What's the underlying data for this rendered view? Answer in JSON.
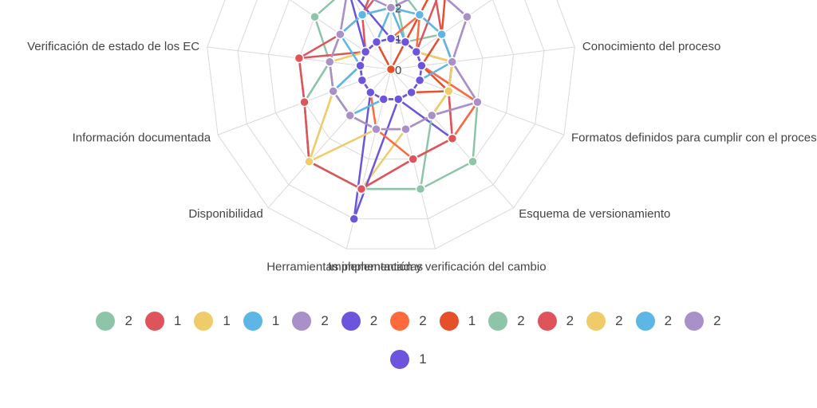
{
  "chart_data": {
    "type": "radar",
    "title": "",
    "rmax": 6,
    "ticks": [
      0,
      1,
      2
    ],
    "grid_rings": 6,
    "axes": [
      "",
      "",
      "",
      "Conocimiento del proceso",
      "Formatos definidos para cumplir con el proceso",
      "Esquema de versionamiento",
      "Implementación y verificación del cambio",
      "Herramientas implementadas",
      "Disponibilidad",
      "Información documentada",
      "Verificación de estado de los EC",
      "",
      ""
    ],
    "series": [
      {
        "name": "2",
        "color": "#8ec5a8",
        "values": [
          3,
          1,
          2,
          2,
          3,
          4,
          4,
          4,
          4,
          3,
          2,
          3,
          3
        ]
      },
      {
        "name": "1",
        "color": "#de545a",
        "values": [
          4,
          5,
          1,
          2,
          2,
          3,
          3,
          4,
          4,
          3,
          3,
          1,
          2
        ]
      },
      {
        "name": "1",
        "color": "#f0cb69",
        "values": [
          2,
          1,
          1,
          2,
          2,
          2,
          2,
          4,
          4,
          2,
          2,
          1,
          1
        ]
      },
      {
        "name": "1",
        "color": "#5db6e6",
        "values": [
          2,
          1,
          1,
          1,
          1,
          1,
          1,
          1,
          2,
          2,
          1,
          1,
          1
        ]
      },
      {
        "name": "2",
        "color": "#aa90c8",
        "values": [
          2,
          3,
          3,
          2,
          3,
          2,
          2,
          2,
          2,
          2,
          2,
          2,
          2
        ]
      },
      {
        "name": "2",
        "color": "#6c55dc",
        "values": [
          1,
          1,
          1,
          1,
          3,
          3,
          1,
          5,
          1,
          1,
          1,
          1,
          3
        ]
      },
      {
        "name": "2",
        "color": "#ff6a3c",
        "values": [
          1,
          2,
          1,
          1,
          3,
          3,
          3,
          2,
          1,
          1,
          1,
          1,
          1
        ]
      },
      {
        "name": "1",
        "color": "#e54f2a",
        "values": [
          0,
          4,
          2,
          1,
          2,
          1,
          1,
          1,
          1,
          1,
          1,
          1,
          1
        ]
      },
      {
        "name": "2",
        "color": "#8ec5a8",
        "values": [
          3,
          2,
          2,
          2,
          2,
          2,
          4,
          4,
          4,
          3,
          2,
          2,
          3
        ]
      },
      {
        "name": "2",
        "color": "#de545a",
        "values": [
          3,
          3,
          2,
          2,
          2,
          3,
          3,
          4,
          4,
          3,
          3,
          2,
          2
        ]
      },
      {
        "name": "2",
        "color": "#f0cb69",
        "values": [
          2,
          2,
          2,
          2,
          2,
          2,
          2,
          2,
          4,
          2,
          2,
          2,
          2
        ]
      },
      {
        "name": "2",
        "color": "#5db6e6",
        "values": [
          2,
          2,
          2,
          2,
          1,
          1,
          1,
          1,
          2,
          2,
          1,
          2,
          2
        ]
      },
      {
        "name": "2",
        "color": "#aa90c8",
        "values": [
          2,
          3,
          3,
          2,
          3,
          2,
          2,
          2,
          2,
          2,
          2,
          2,
          3
        ]
      },
      {
        "name": "1",
        "color": "#6c55dc",
        "values": [
          1,
          1,
          1,
          1,
          1,
          1,
          1,
          1,
          1,
          1,
          1,
          1,
          1
        ]
      }
    ],
    "legend_position": "bottom",
    "grid": true
  },
  "legend": {
    "rows": [
      [
        {
          "label": "2",
          "color": "#8ec5a8"
        },
        {
          "label": "1",
          "color": "#de545a"
        },
        {
          "label": "1",
          "color": "#f0cb69"
        },
        {
          "label": "1",
          "color": "#5db6e6"
        },
        {
          "label": "2",
          "color": "#aa90c8"
        },
        {
          "label": "2",
          "color": "#6c55dc"
        },
        {
          "label": "2",
          "color": "#ff6a3c"
        },
        {
          "label": "1",
          "color": "#e54f2a"
        },
        {
          "label": "2",
          "color": "#8ec5a8"
        },
        {
          "label": "2",
          "color": "#de545a"
        },
        {
          "label": "2",
          "color": "#f0cb69"
        },
        {
          "label": "2",
          "color": "#5db6e6"
        },
        {
          "label": "2",
          "color": "#aa90c8"
        }
      ],
      [
        {
          "label": "1",
          "color": "#6c55dc"
        }
      ]
    ]
  }
}
